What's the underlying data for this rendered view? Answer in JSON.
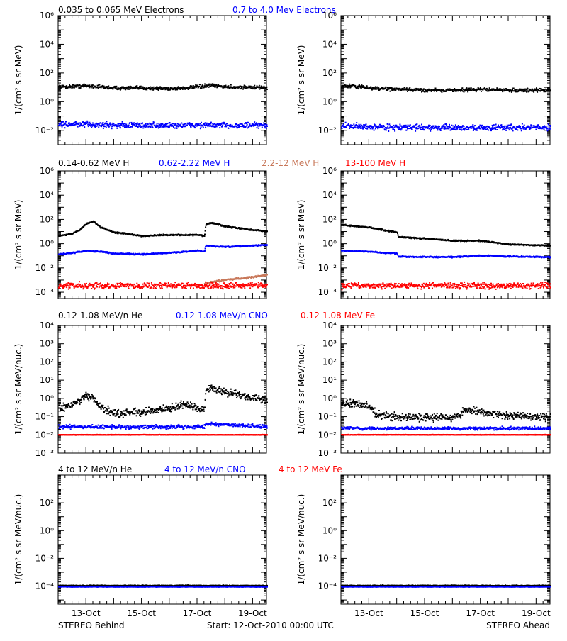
{
  "colors": {
    "black": "#000000",
    "blue": "#0000ff",
    "tan": "#c8785a",
    "red": "#ff0000"
  },
  "rows": [
    {
      "ylabel": "1/(cm² s sr MeV)",
      "legend": [
        {
          "text": "0.035 to 0.065 MeV Electrons",
          "color": "black"
        },
        {
          "text": "0.7 to 4.0 Mev Electrons",
          "color": "blue"
        }
      ]
    },
    {
      "ylabel": "1/(cm² s sr MeV)",
      "legend": [
        {
          "text": "0.14-0.62 MeV H",
          "color": "black"
        },
        {
          "text": "0.62-2.22 MeV H",
          "color": "blue"
        },
        {
          "text": "2.2-12 MeV H",
          "color": "tan"
        },
        {
          "text": "13-100 MeV H",
          "color": "red"
        }
      ]
    },
    {
      "ylabel": "1/(cm² s sr MeV/nuc.)",
      "legend": [
        {
          "text": "0.12-1.08 MeV/n He",
          "color": "black"
        },
        {
          "text": "0.12-1.08 MeV/n CNO",
          "color": "blue"
        },
        {
          "text": "0.12-1.08 MeV Fe",
          "color": "red"
        }
      ]
    },
    {
      "ylabel": "1/(cm² s sr MeV/nuc.)",
      "legend": [
        {
          "text": "4 to 12 MeV/n He",
          "color": "black"
        },
        {
          "text": "4 to 12 MeV/n CNO",
          "color": "blue"
        },
        {
          "text": "4 to 12 MeV Fe",
          "color": "red"
        }
      ]
    }
  ],
  "footer": {
    "left": "STEREO Behind",
    "center": "Start: 12-Oct-2010 00:00 UTC",
    "right": "STEREO Ahead"
  },
  "xticks": [
    "13-Oct",
    "15-Oct",
    "17-Oct",
    "19-Oct"
  ],
  "chart_data": [
    {
      "panel": "electrons-behind",
      "type": "scatter",
      "yscale": "log",
      "ylim": [
        0.001,
        1000000
      ],
      "xlim": [
        "2010-10-12T00:00",
        "2010-10-19T12:00"
      ],
      "ytick_labels": [
        "10⁻²",
        "10⁰",
        "10²",
        "10⁴",
        "10⁶"
      ],
      "ytick_values": [
        0.01,
        1,
        100,
        10000,
        1000000
      ],
      "series": [
        {
          "name": "0.035 to 0.065 MeV Electrons",
          "color": "black",
          "x": [
            "2010-10-12",
            "2010-10-12T12:00",
            "2010-10-13",
            "2010-10-13T12:00",
            "2010-10-14",
            "2010-10-15",
            "2010-10-16",
            "2010-10-16T12:00",
            "2010-10-17",
            "2010-10-17T12:00",
            "2010-10-18",
            "2010-10-19",
            "2010-10-19T12:00"
          ],
          "values": [
            12,
            13,
            14,
            12,
            10,
            10,
            9,
            10,
            12,
            15,
            12,
            11,
            11
          ],
          "spread": 0.18
        },
        {
          "name": "0.7 to 4.0 Mev Electrons",
          "color": "blue",
          "x": [
            "2010-10-12",
            "2010-10-13",
            "2010-10-14",
            "2010-10-15",
            "2010-10-16",
            "2010-10-17",
            "2010-10-18",
            "2010-10-19T12:00"
          ],
          "values": [
            0.03,
            0.028,
            0.026,
            0.025,
            0.025,
            0.026,
            0.025,
            0.024
          ],
          "spread": 0.3
        }
      ]
    },
    {
      "panel": "electrons-ahead",
      "type": "scatter",
      "yscale": "log",
      "ylim": [
        0.001,
        1000000
      ],
      "xlim": [
        "2010-10-12T00:00",
        "2010-10-19T12:00"
      ],
      "ytick_labels": [
        "10⁻²",
        "10⁰",
        "10²",
        "10⁴",
        "10⁶"
      ],
      "ytick_values": [
        0.01,
        1,
        100,
        10000,
        1000000
      ],
      "series": [
        {
          "name": "0.035 to 0.065 MeV Electrons",
          "color": "black",
          "x": [
            "2010-10-12",
            "2010-10-12T12:00",
            "2010-10-13",
            "2010-10-14",
            "2010-10-15",
            "2010-10-16",
            "2010-10-17",
            "2010-10-18",
            "2010-10-19",
            "2010-10-19T12:00"
          ],
          "values": [
            14,
            13,
            10,
            8,
            7,
            7,
            8,
            7,
            7,
            7
          ],
          "spread": 0.18
        },
        {
          "name": "0.7 to 4.0 Mev Electrons",
          "color": "blue",
          "x": [
            "2010-10-12",
            "2010-10-13",
            "2010-10-14",
            "2010-10-15",
            "2010-10-16",
            "2010-10-17",
            "2010-10-18",
            "2010-10-19T12:00"
          ],
          "values": [
            0.022,
            0.02,
            0.018,
            0.018,
            0.017,
            0.017,
            0.018,
            0.018
          ],
          "spread": 0.3
        }
      ]
    },
    {
      "panel": "protons-behind",
      "type": "scatter",
      "yscale": "log",
      "ylim": [
        3e-05,
        1000000
      ],
      "xlim": [
        "2010-10-12T00:00",
        "2010-10-19T12:00"
      ],
      "ytick_labels": [
        "10⁻⁴",
        "10⁻²",
        "10⁰",
        "10²",
        "10⁴",
        "10⁶"
      ],
      "ytick_values": [
        0.0001,
        0.01,
        1,
        100,
        10000,
        1000000
      ],
      "series": [
        {
          "name": "0.14-0.62 MeV H",
          "color": "black",
          "x": [
            "2010-10-12",
            "2010-10-12T12:00",
            "2010-10-12T18:00",
            "2010-10-13",
            "2010-10-13T06:00",
            "2010-10-13T12:00",
            "2010-10-14",
            "2010-10-15",
            "2010-10-16",
            "2010-10-17",
            "2010-10-17T06:00",
            "2010-10-17T07:00",
            "2010-10-17T12:00",
            "2010-10-18",
            "2010-10-19",
            "2010-10-19T12:00"
          ],
          "values": [
            5,
            8,
            15,
            50,
            80,
            25,
            10,
            5,
            6,
            6,
            5,
            40,
            60,
            30,
            15,
            12
          ],
          "spread": 0.08
        },
        {
          "name": "0.62-2.22 MeV H",
          "color": "blue",
          "x": [
            "2010-10-12",
            "2010-10-12T12:00",
            "2010-10-13",
            "2010-10-13T12:00",
            "2010-10-14",
            "2010-10-15",
            "2010-10-16",
            "2010-10-17",
            "2010-10-17T06:00",
            "2010-10-17T07:00",
            "2010-10-18",
            "2010-10-19",
            "2010-10-19T12:00"
          ],
          "values": [
            0.15,
            0.2,
            0.3,
            0.25,
            0.18,
            0.15,
            0.2,
            0.3,
            0.25,
            0.8,
            0.6,
            0.8,
            0.9
          ],
          "spread": 0.08
        },
        {
          "name": "2.2-12 MeV H",
          "color": "tan",
          "x": [
            "2010-10-17T06:00",
            "2010-10-18",
            "2010-10-19",
            "2010-10-19T12:00"
          ],
          "values": [
            0.0006,
            0.0012,
            0.002,
            0.003
          ],
          "spread": 0.1
        },
        {
          "name": "13-100 MeV H",
          "color": "red",
          "x": [
            "2010-10-12",
            "2010-10-14",
            "2010-10-16",
            "2010-10-18",
            "2010-10-19T12:00"
          ],
          "values": [
            0.0004,
            0.0004,
            0.0004,
            0.0004,
            0.0004
          ],
          "spread": 0.35
        }
      ]
    },
    {
      "panel": "protons-ahead",
      "type": "scatter",
      "yscale": "log",
      "ylim": [
        3e-05,
        1000000
      ],
      "xlim": [
        "2010-10-12T00:00",
        "2010-10-19T12:00"
      ],
      "ytick_labels": [
        "10⁻⁴",
        "10⁻²",
        "10⁰",
        "10²",
        "10⁴",
        "10⁶"
      ],
      "ytick_values": [
        0.0001,
        0.01,
        1,
        100,
        10000,
        1000000
      ],
      "series": [
        {
          "name": "0.14-0.62 MeV H",
          "color": "black",
          "x": [
            "2010-10-12",
            "2010-10-13",
            "2010-10-13T12:00",
            "2010-10-14",
            "2010-10-14T01:00",
            "2010-10-15",
            "2010-10-16",
            "2010-10-17",
            "2010-10-18",
            "2010-10-19T12:00"
          ],
          "values": [
            40,
            25,
            15,
            10,
            4,
            3,
            2,
            2,
            1,
            0.8
          ],
          "spread": 0.08
        },
        {
          "name": "0.62-2.22 MeV H",
          "color": "blue",
          "x": [
            "2010-10-12",
            "2010-10-13",
            "2010-10-13T12:00",
            "2010-10-14",
            "2010-10-14T01:00",
            "2010-10-15",
            "2010-10-16",
            "2010-10-17",
            "2010-10-18",
            "2010-10-19T12:00"
          ],
          "values": [
            0.3,
            0.25,
            0.2,
            0.18,
            0.1,
            0.09,
            0.09,
            0.12,
            0.1,
            0.09
          ],
          "spread": 0.08
        },
        {
          "name": "13-100 MeV H",
          "color": "red",
          "x": [
            "2010-10-12",
            "2010-10-14",
            "2010-10-16",
            "2010-10-18",
            "2010-10-19T12:00"
          ],
          "values": [
            0.0004,
            0.0004,
            0.0004,
            0.0004,
            0.0004
          ],
          "spread": 0.35
        }
      ]
    },
    {
      "panel": "ions-low-behind",
      "type": "scatter",
      "yscale": "log",
      "ylim": [
        0.001,
        10000
      ],
      "xlim": [
        "2010-10-12T00:00",
        "2010-10-19T12:00"
      ],
      "ytick_labels": [
        "10⁻³",
        "10⁻²",
        "10⁻¹",
        "10⁰",
        "10¹",
        "10²",
        "10³",
        "10⁴"
      ],
      "ytick_values": [
        0.001,
        0.01,
        0.1,
        1,
        10,
        100,
        1000,
        10000
      ],
      "series": [
        {
          "name": "0.12-1.08 MeV/n He",
          "color": "black",
          "x": [
            "2010-10-12",
            "2010-10-12T12:00",
            "2010-10-13",
            "2010-10-13T06:00",
            "2010-10-13T12:00",
            "2010-10-14",
            "2010-10-15",
            "2010-10-16",
            "2010-10-16T12:00",
            "2010-10-17",
            "2010-10-17T06:00",
            "2010-10-17T07:00",
            "2010-10-17T12:00",
            "2010-10-18",
            "2010-10-19",
            "2010-10-19T12:00"
          ],
          "values": [
            0.3,
            0.5,
            1.5,
            1.2,
            0.4,
            0.15,
            0.2,
            0.3,
            0.5,
            0.3,
            0.25,
            3,
            4,
            2.5,
            1.2,
            1
          ],
          "spread": 0.3
        },
        {
          "name": "0.12-1.08 MeV/n CNO",
          "color": "blue",
          "x": [
            "2010-10-12",
            "2010-10-14",
            "2010-10-16",
            "2010-10-17T06:00",
            "2010-10-17T07:00",
            "2010-10-18",
            "2010-10-19T12:00"
          ],
          "values": [
            0.03,
            0.03,
            0.03,
            0.03,
            0.045,
            0.04,
            0.03
          ],
          "spread": 0.15
        },
        {
          "name": "0.12-1.08 MeV Fe",
          "color": "red",
          "x": [
            "2010-10-12",
            "2010-10-19T12:00"
          ],
          "values": [
            0.011,
            0.011
          ],
          "spread": 0.02
        }
      ]
    },
    {
      "panel": "ions-low-ahead",
      "type": "scatter",
      "yscale": "log",
      "ylim": [
        0.001,
        10000
      ],
      "xlim": [
        "2010-10-12T00:00",
        "2010-10-19T12:00"
      ],
      "ytick_labels": [
        "10⁻³",
        "10⁻²",
        "10⁻¹",
        "10⁰",
        "10¹",
        "10²",
        "10³",
        "10⁴"
      ],
      "ytick_values": [
        0.001,
        0.01,
        0.1,
        1,
        10,
        100,
        1000,
        10000
      ],
      "series": [
        {
          "name": "0.12-1.08 MeV/n He",
          "color": "black",
          "x": [
            "2010-10-12",
            "2010-10-12T12:00",
            "2010-10-13",
            "2010-10-13T06:00",
            "2010-10-14",
            "2010-10-15",
            "2010-10-16",
            "2010-10-16T12:00",
            "2010-10-17",
            "2010-10-18",
            "2010-10-19T12:00"
          ],
          "values": [
            0.5,
            0.6,
            0.4,
            0.15,
            0.1,
            0.1,
            0.1,
            0.25,
            0.2,
            0.12,
            0.1
          ],
          "spread": 0.3
        },
        {
          "name": "0.12-1.08 MeV/n CNO",
          "color": "blue",
          "x": [
            "2010-10-12",
            "2010-10-19T12:00"
          ],
          "values": [
            0.025,
            0.025
          ],
          "spread": 0.12
        },
        {
          "name": "0.12-1.08 MeV Fe",
          "color": "red",
          "x": [
            "2010-10-12",
            "2010-10-19T12:00"
          ],
          "values": [
            0.011,
            0.011
          ],
          "spread": 0.02
        }
      ]
    },
    {
      "panel": "ions-high-behind",
      "type": "scatter",
      "yscale": "log",
      "ylim": [
        5e-06,
        10000
      ],
      "xlim": [
        "2010-10-12T00:00",
        "2010-10-19T12:00"
      ],
      "ytick_labels": [
        "10⁻⁴",
        "10⁻²",
        "10⁰",
        "10²"
      ],
      "ytick_values": [
        0.0001,
        0.01,
        1,
        100
      ],
      "series": [
        {
          "name": "4 to 12 MeV/n He",
          "color": "black",
          "x": [
            "2010-10-12",
            "2010-10-19T12:00"
          ],
          "values": [
            0.00012,
            0.00012
          ],
          "spread": 0.05
        },
        {
          "name": "4 to 12 MeV/n CNO",
          "color": "blue",
          "x": [
            "2010-10-12",
            "2010-10-19T12:00"
          ],
          "values": [
            0.0001,
            0.0001
          ],
          "spread": 0.02
        }
      ]
    },
    {
      "panel": "ions-high-ahead",
      "type": "scatter",
      "yscale": "log",
      "ylim": [
        5e-06,
        10000
      ],
      "xlim": [
        "2010-10-12T00:00",
        "2010-10-19T12:00"
      ],
      "ytick_labels": [
        "10⁻⁴",
        "10⁻²",
        "10⁰",
        "10²"
      ],
      "ytick_values": [
        0.0001,
        0.01,
        1,
        100
      ],
      "series": [
        {
          "name": "4 to 12 MeV/n He",
          "color": "black",
          "x": [
            "2010-10-12",
            "2010-10-19T12:00"
          ],
          "values": [
            0.00012,
            0.00012
          ],
          "spread": 0.05
        },
        {
          "name": "4 to 12 MeV/n CNO",
          "color": "blue",
          "x": [
            "2010-10-12",
            "2010-10-19T12:00"
          ],
          "values": [
            0.0001,
            0.0001
          ],
          "spread": 0.02
        }
      ]
    }
  ]
}
